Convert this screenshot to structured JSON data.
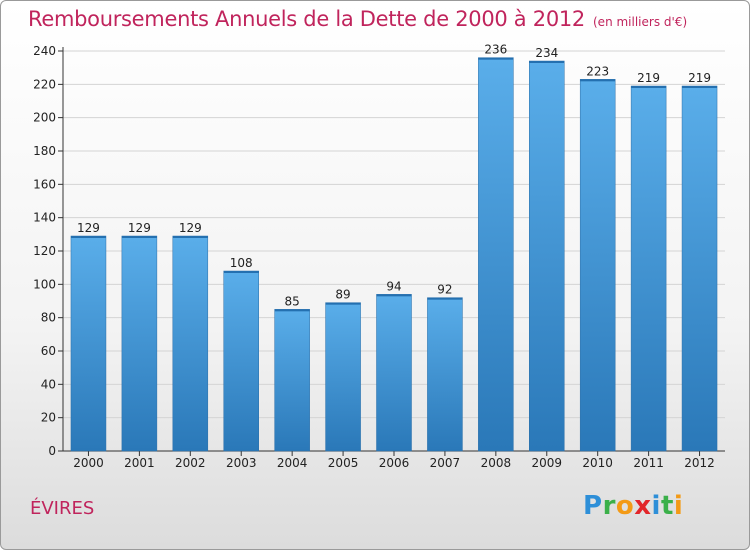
{
  "title": "Remboursements Annuels de la Dette de 2000 à 2012",
  "subtitle": "(en milliers d'€)",
  "commune": "ÉVIRES",
  "logo": {
    "letters": [
      {
        "char": "P",
        "color": "#2e8fd8"
      },
      {
        "char": "r",
        "color": "#3bb04a"
      },
      {
        "char": "o",
        "color": "#f39a16"
      },
      {
        "char": "x",
        "color": "#e2262a"
      },
      {
        "char": "i",
        "color": "#2e8fd8"
      },
      {
        "char": "t",
        "color": "#3bb04a"
      },
      {
        "char": "i",
        "color": "#f39a16"
      }
    ]
  },
  "colors": {
    "title": "#c0245c",
    "bar_top": "#5aaeea",
    "bar_bottom": "#2a78b8",
    "grid": "#d4d4d4"
  },
  "chart_data": {
    "type": "bar",
    "title": "Remboursements Annuels de la Dette de 2000 à 2012",
    "subtitle": "(en milliers d'€)",
    "xlabel": "",
    "ylabel": "",
    "categories": [
      "2000",
      "2001",
      "2002",
      "2003",
      "2004",
      "2005",
      "2006",
      "2007",
      "2008",
      "2009",
      "2010",
      "2011",
      "2012"
    ],
    "values": [
      129,
      129,
      129,
      108,
      85,
      89,
      94,
      92,
      236,
      234,
      223,
      219,
      219
    ],
    "ylim": [
      0,
      240
    ],
    "yticks": [
      0,
      20,
      40,
      60,
      80,
      100,
      120,
      140,
      160,
      180,
      200,
      220,
      240
    ],
    "grid": true,
    "legend": "none"
  }
}
